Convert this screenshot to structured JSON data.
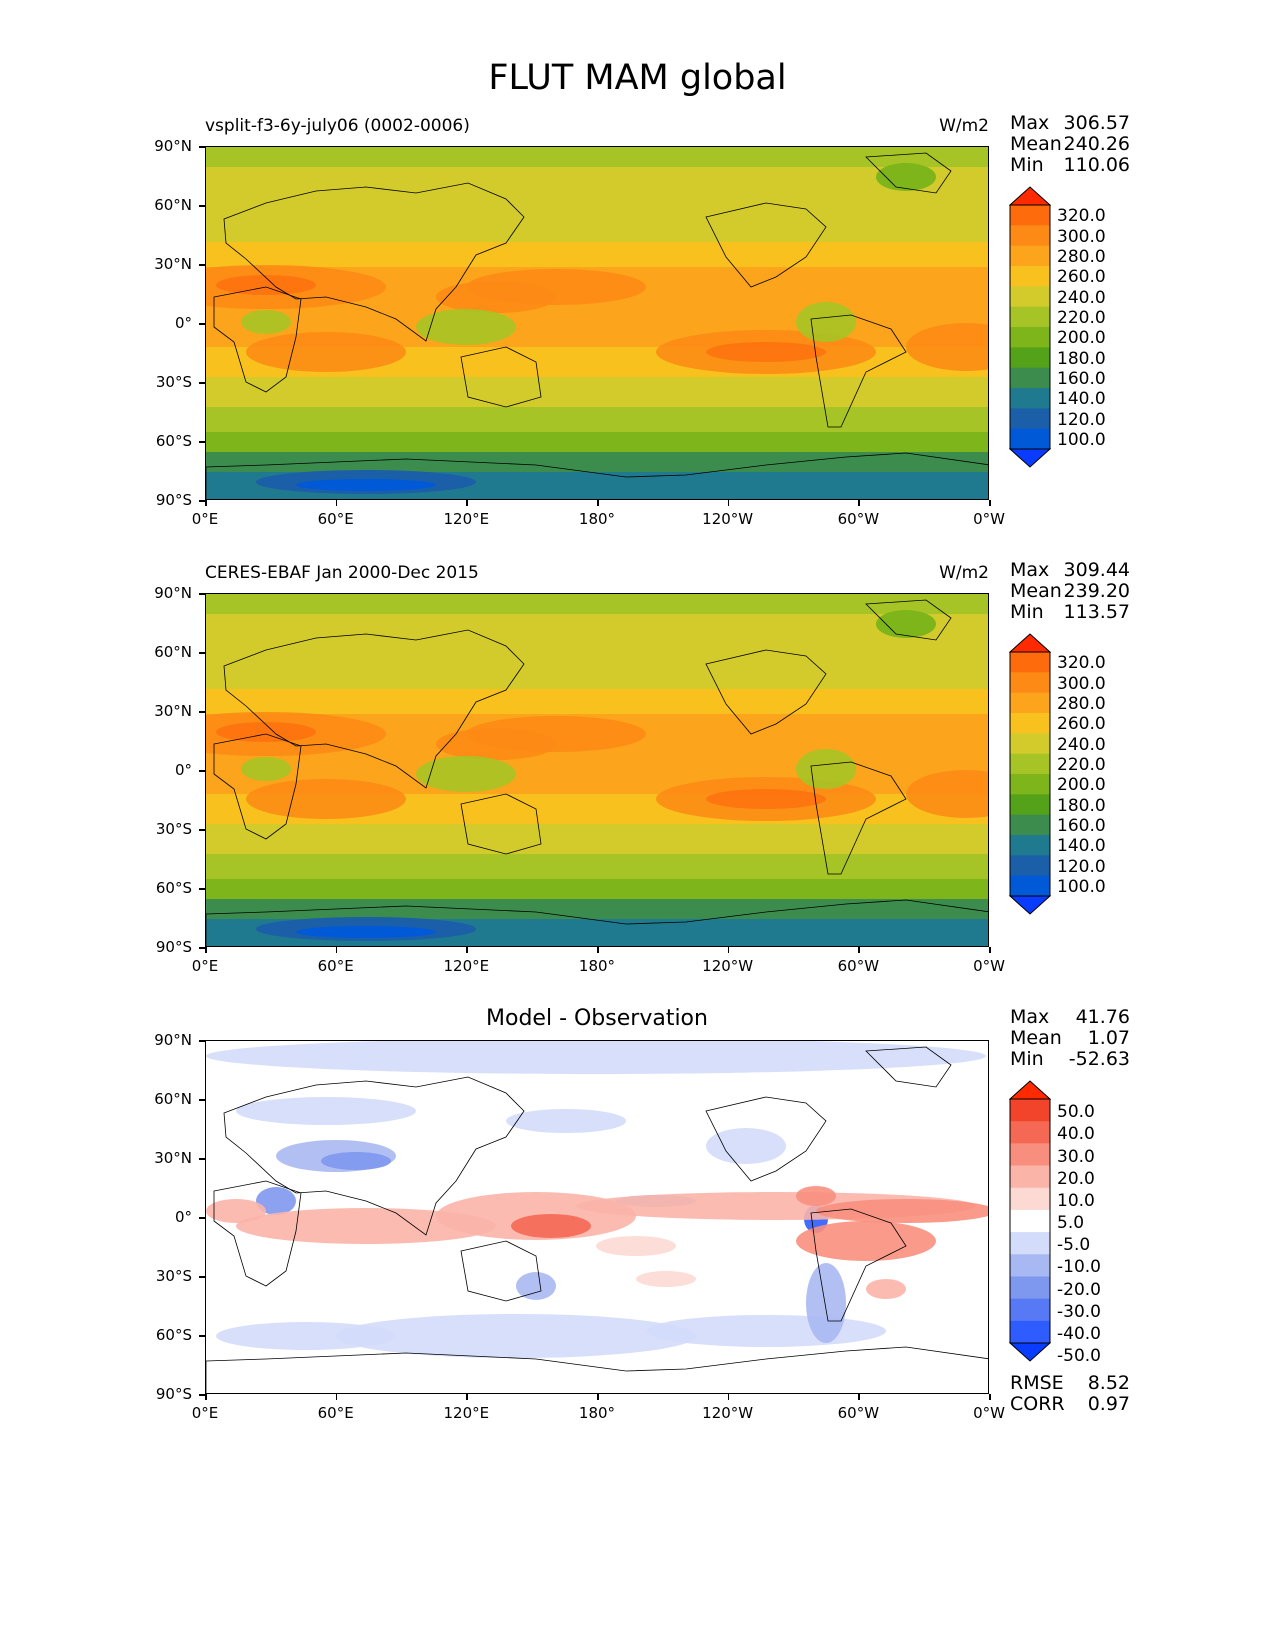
{
  "title": "FLUT MAM global",
  "panels": [
    {
      "id": "model",
      "left_title": "vsplit-f3-6y-july06 (0002-0006)",
      "units": "W/m2",
      "center_title": "",
      "stats": {
        "max_label": "Max",
        "max": "306.57",
        "mean_label": "Mean",
        "mean": "240.26",
        "min_label": "Min",
        "min": "110.06"
      },
      "colorbar_labels": [
        "320.0",
        "300.0",
        "280.0",
        "260.0",
        "240.0",
        "220.0",
        "200.0",
        "180.0",
        "160.0",
        "140.0",
        "120.0",
        "100.0"
      ]
    },
    {
      "id": "obs",
      "left_title": "CERES-EBAF Jan 2000-Dec 2015",
      "units": "W/m2",
      "center_title": "",
      "stats": {
        "max_label": "Max",
        "max": "309.44",
        "mean_label": "Mean",
        "mean": "239.20",
        "min_label": "Min",
        "min": "113.57"
      },
      "colorbar_labels": [
        "320.0",
        "300.0",
        "280.0",
        "260.0",
        "240.0",
        "220.0",
        "200.0",
        "180.0",
        "160.0",
        "140.0",
        "120.0",
        "100.0"
      ]
    },
    {
      "id": "diff",
      "left_title": "",
      "units": "",
      "center_title": "Model - Observation",
      "stats": {
        "max_label": "Max",
        "max": "41.76",
        "mean_label": "Mean",
        "mean": "1.07",
        "min_label": "Min",
        "min": "-52.63"
      },
      "colorbar_labels": [
        "50.0",
        "40.0",
        "30.0",
        "20.0",
        "10.0",
        "5.0",
        "-5.0",
        "-10.0",
        "-20.0",
        "-30.0",
        "-40.0",
        "-50.0"
      ],
      "metrics": {
        "rmse_label": "RMSE",
        "rmse": "8.52",
        "corr_label": "CORR",
        "corr": "0.97"
      }
    }
  ],
  "axes": {
    "lat_ticks": [
      "90°N",
      "60°N",
      "30°N",
      "0°",
      "30°S",
      "60°S",
      "90°S"
    ],
    "lon_ticks": [
      "0°E",
      "60°E",
      "120°E",
      "180°",
      "120°W",
      "60°W",
      "0°W"
    ]
  },
  "colors": {
    "field_scale": [
      "#0a3cff",
      "#0059d6",
      "#1a5fa8",
      "#207a8f",
      "#3c8c4e",
      "#54a219",
      "#7db51a",
      "#a6c425",
      "#d3cb2c",
      "#f8c11e",
      "#fca41b",
      "#fd8a14",
      "#fe6b0d",
      "#ff2a00"
    ],
    "diff_scale": [
      "#0a3cff",
      "#2f5cff",
      "#5879f5",
      "#7f98ef",
      "#a8b8f2",
      "#d3dcfb",
      "#ffffff",
      "#fdd9d4",
      "#fbb4a8",
      "#f88f7e",
      "#f56954",
      "#f2442a",
      "#ff2a00"
    ]
  }
}
